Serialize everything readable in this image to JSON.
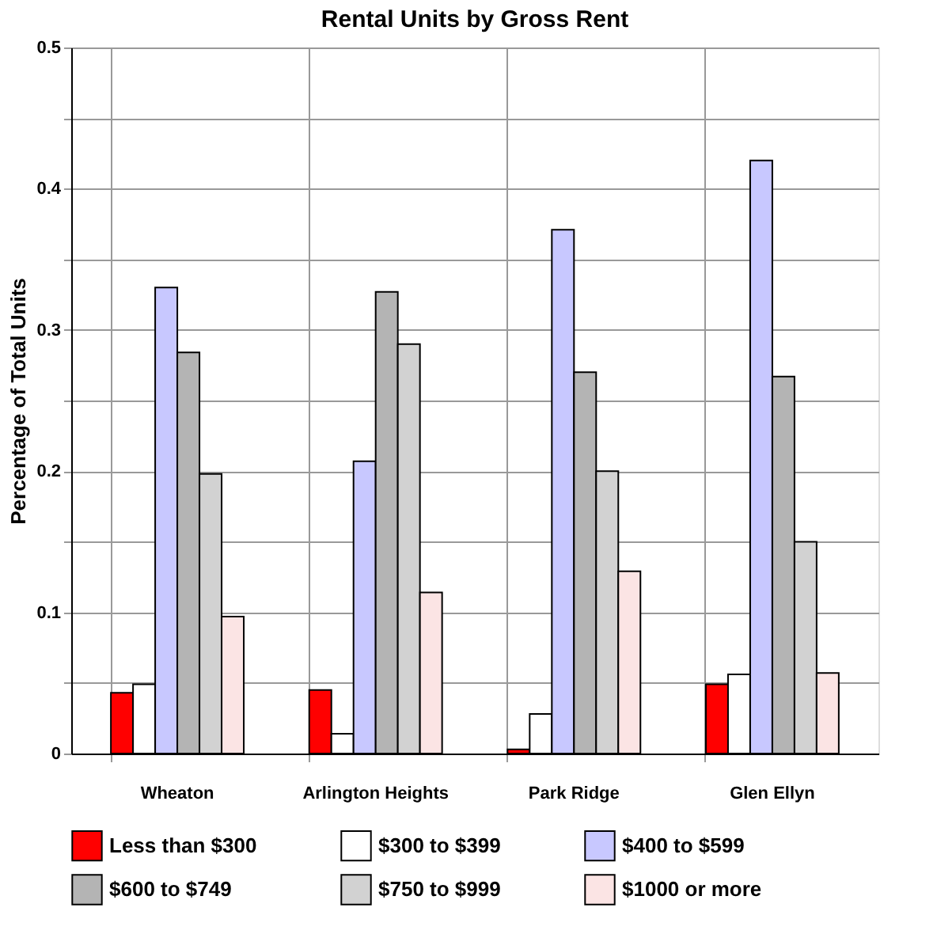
{
  "chart_data": {
    "type": "bar",
    "title": "Rental Units by Gross Rent",
    "ylabel": "Percentage of Total Units",
    "categories": [
      "Wheaton",
      "Arlington Heights",
      "Park Ridge",
      "Glen Ellyn"
    ],
    "series": [
      {
        "name": "Less than $300",
        "color": "#ff0000",
        "values": [
          0.043,
          0.045,
          0.003,
          0.049
        ]
      },
      {
        "name": "$300 to $399",
        "color": "#ffffff",
        "values": [
          0.049,
          0.014,
          0.028,
          0.056
        ]
      },
      {
        "name": "$400 to $599",
        "color": "#c8c8ff",
        "values": [
          0.33,
          0.207,
          0.371,
          0.42
        ]
      },
      {
        "name": "$600 to $749",
        "color": "#b4b4b4",
        "values": [
          0.284,
          0.327,
          0.27,
          0.267
        ]
      },
      {
        "name": "$750 to $999",
        "color": "#d2d2d2",
        "values": [
          0.198,
          0.29,
          0.2,
          0.15
        ]
      },
      {
        "name": "$1000 or more",
        "color": "#fbe4e4",
        "values": [
          0.097,
          0.114,
          0.129,
          0.057
        ]
      }
    ],
    "ylim": [
      0,
      0.5
    ],
    "yticks": [
      0,
      {
        "value": 0.05,
        "label": null
      },
      0.1,
      {
        "value": 0.15,
        "label": null
      },
      0.2,
      {
        "value": 0.25,
        "label": null
      },
      0.3,
      {
        "value": 0.35,
        "label": null
      },
      0.4,
      {
        "value": 0.45,
        "label": null
      },
      0.5
    ],
    "grid": true,
    "legend": "bottom"
  }
}
